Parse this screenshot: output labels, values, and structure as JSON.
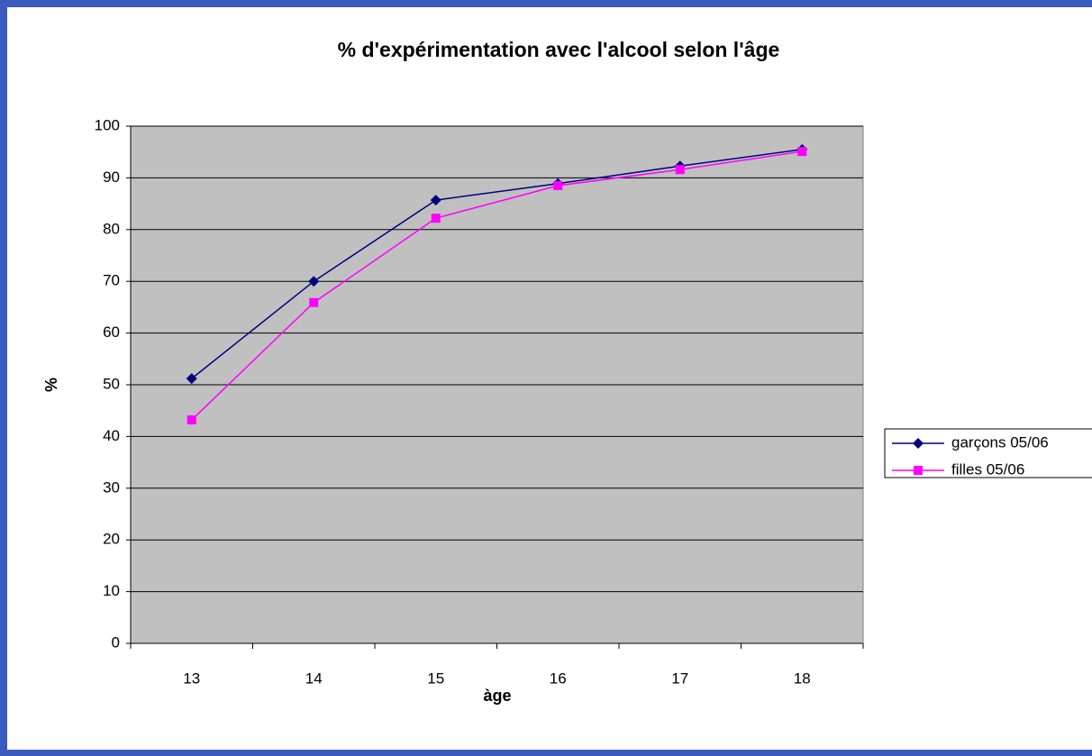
{
  "chart_data": {
    "type": "line",
    "title": "% d'expérimentation avec l'alcool selon l'âge",
    "xlabel": "àge",
    "ylabel": "%",
    "categories": [
      "13",
      "14",
      "15",
      "16",
      "17",
      "18"
    ],
    "series": [
      {
        "name": "garçons 05/06",
        "color": "#000080",
        "marker": "diamond",
        "values": [
          51.2,
          70.0,
          85.7,
          88.9,
          92.3,
          95.5
        ]
      },
      {
        "name": "filles 05/06",
        "color": "#ff00ff",
        "marker": "square",
        "values": [
          43.2,
          65.9,
          82.2,
          88.5,
          91.6,
          95.1
        ]
      }
    ],
    "ylim": [
      0,
      100
    ],
    "yticks": [
      0,
      10,
      20,
      30,
      40,
      50,
      60,
      70,
      80,
      90,
      100
    ],
    "grid": true,
    "legend": "right"
  }
}
